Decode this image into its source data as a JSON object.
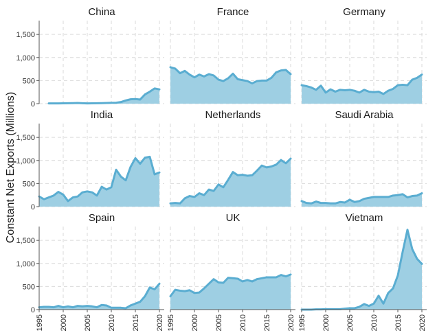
{
  "chart_data": {
    "type": "area",
    "ylabel": "Constant Net Exports (Millions)",
    "ylim": [
      0,
      1800
    ],
    "y_ticks": [
      0,
      500,
      1000,
      1500
    ],
    "y_tick_labels": [
      "0",
      "500",
      "1,000",
      "1,500"
    ],
    "xlim": [
      1995,
      2021
    ],
    "x_ticks": [
      1995,
      2000,
      2005,
      2010,
      2015,
      2020
    ],
    "x_tick_labels": [
      "1995",
      "2000",
      "2005",
      "2010",
      "2015",
      "2020"
    ],
    "grid": true,
    "colors": {
      "fill": "#9ecfe3",
      "line": "#5aadd1"
    },
    "panels": [
      {
        "name": "China",
        "x": [
          1997,
          1998,
          1999,
          2000,
          2001,
          2002,
          2003,
          2004,
          2005,
          2006,
          2007,
          2008,
          2009,
          2010,
          2011,
          2012,
          2013,
          2014,
          2015,
          2016,
          2017,
          2018,
          2019,
          2020
        ],
        "values": [
          5,
          5,
          5,
          8,
          10,
          12,
          15,
          10,
          5,
          8,
          10,
          12,
          15,
          18,
          20,
          35,
          70,
          95,
          100,
          90,
          200,
          260,
          330,
          310
        ]
      },
      {
        "name": "France",
        "x": [
          1995,
          1996,
          1997,
          1998,
          1999,
          2000,
          2001,
          2002,
          2003,
          2004,
          2005,
          2006,
          2007,
          2008,
          2009,
          2010,
          2011,
          2012,
          2013,
          2014,
          2015,
          2016,
          2017,
          2018,
          2019,
          2020
        ],
        "values": [
          790,
          760,
          660,
          710,
          630,
          570,
          630,
          590,
          640,
          610,
          520,
          490,
          550,
          650,
          530,
          510,
          490,
          440,
          490,
          500,
          500,
          560,
          680,
          720,
          730,
          640
        ]
      },
      {
        "name": "Germany",
        "x": [
          1995,
          1996,
          1997,
          1998,
          1999,
          2000,
          2001,
          2002,
          2003,
          2004,
          2005,
          2006,
          2007,
          2008,
          2009,
          2010,
          2011,
          2012,
          2013,
          2014,
          2015,
          2016,
          2017,
          2018,
          2019,
          2020
        ],
        "values": [
          400,
          380,
          350,
          300,
          390,
          240,
          310,
          260,
          300,
          290,
          300,
          280,
          240,
          300,
          260,
          250,
          260,
          210,
          280,
          320,
          400,
          410,
          400,
          520,
          560,
          630
        ]
      },
      {
        "name": "India",
        "x": [
          1995,
          1996,
          1997,
          1998,
          1999,
          2000,
          2001,
          2002,
          2003,
          2004,
          2005,
          2006,
          2007,
          2008,
          2009,
          2010,
          2011,
          2012,
          2013,
          2014,
          2015,
          2016,
          2017,
          2018,
          2019,
          2020
        ],
        "values": [
          220,
          160,
          200,
          240,
          320,
          260,
          120,
          200,
          220,
          310,
          330,
          310,
          240,
          430,
          370,
          420,
          800,
          650,
          570,
          860,
          1050,
          930,
          1060,
          1080,
          700,
          740
        ]
      },
      {
        "name": "Netherlands",
        "x": [
          1995,
          1996,
          1997,
          1998,
          1999,
          2000,
          2001,
          2002,
          2003,
          2004,
          2005,
          2006,
          2007,
          2008,
          2009,
          2010,
          2011,
          2012,
          2013,
          2014,
          2015,
          2016,
          2017,
          2018,
          2019,
          2020
        ],
        "values": [
          70,
          80,
          70,
          180,
          230,
          210,
          290,
          250,
          370,
          340,
          480,
          420,
          580,
          750,
          680,
          690,
          670,
          680,
          780,
          890,
          850,
          870,
          910,
          1010,
          940,
          1040
        ]
      },
      {
        "name": "Saudi Arabia",
        "x": [
          1995,
          1996,
          1997,
          1998,
          1999,
          2000,
          2001,
          2002,
          2003,
          2004,
          2005,
          2006,
          2007,
          2008,
          2009,
          2010,
          2011,
          2012,
          2013,
          2014,
          2015,
          2016,
          2017,
          2018,
          2019,
          2020
        ],
        "values": [
          120,
          80,
          70,
          110,
          80,
          80,
          70,
          70,
          100,
          90,
          150,
          100,
          120,
          170,
          190,
          210,
          210,
          210,
          210,
          240,
          250,
          270,
          200,
          230,
          240,
          290
        ]
      },
      {
        "name": "Spain",
        "x": [
          1995,
          1996,
          1997,
          1998,
          1999,
          2000,
          2001,
          2002,
          2003,
          2004,
          2005,
          2006,
          2007,
          2008,
          2009,
          2010,
          2011,
          2012,
          2013,
          2014,
          2015,
          2016,
          2017,
          2018,
          2019,
          2020
        ],
        "values": [
          50,
          60,
          60,
          50,
          80,
          50,
          70,
          50,
          80,
          70,
          80,
          70,
          50,
          100,
          90,
          40,
          40,
          40,
          30,
          90,
          130,
          170,
          290,
          480,
          440,
          560
        ]
      },
      {
        "name": "UK",
        "x": [
          1995,
          1996,
          1997,
          1998,
          1999,
          2000,
          2001,
          2002,
          2003,
          2004,
          2005,
          2006,
          2007,
          2008,
          2009,
          2010,
          2011,
          2012,
          2013,
          2014,
          2015,
          2016,
          2017,
          2018,
          2019,
          2020
        ],
        "values": [
          290,
          430,
          410,
          400,
          420,
          360,
          370,
          460,
          560,
          660,
          590,
          580,
          690,
          680,
          670,
          610,
          640,
          610,
          660,
          680,
          700,
          700,
          700,
          750,
          720,
          760
        ]
      },
      {
        "name": "Vietnam",
        "x": [
          1995,
          1996,
          1997,
          1998,
          1999,
          2000,
          2001,
          2002,
          2003,
          2004,
          2005,
          2006,
          2007,
          2008,
          2009,
          2010,
          2011,
          2012,
          2013,
          2014,
          2015,
          2016,
          2017,
          2018,
          2019,
          2020
        ],
        "values": [
          0,
          0,
          0,
          5,
          5,
          10,
          10,
          10,
          10,
          20,
          30,
          30,
          60,
          120,
          80,
          130,
          300,
          130,
          360,
          460,
          740,
          1250,
          1730,
          1310,
          1100,
          990
        ]
      }
    ]
  }
}
